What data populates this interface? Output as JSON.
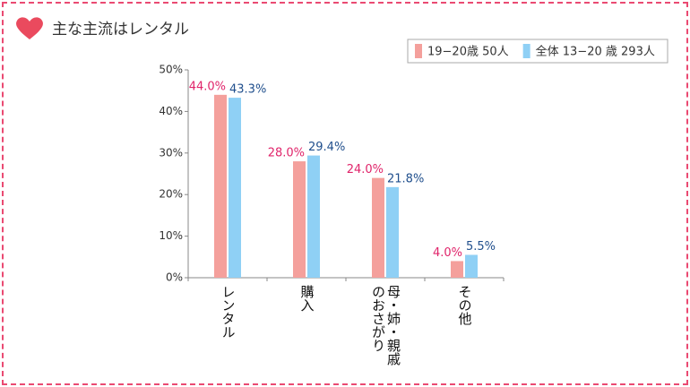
{
  "chart_data": {
    "type": "bar",
    "title": "主な主流はレンタル",
    "categories": [
      "レンタル",
      "購入",
      "母・姉・親戚のおさがり",
      "その他"
    ],
    "series": [
      {
        "name": "19−20歳 50人",
        "color": "#f4a09c",
        "label_color": "#e0246a",
        "values": [
          44.0,
          28.0,
          24.0,
          4.0
        ],
        "value_labels": [
          "44.0%",
          "28.0%",
          "24.0%",
          "4.0%"
        ]
      },
      {
        "name": "全体 13−20 歳 293人",
        "color": "#8fd0f5",
        "label_color": "#1f4e8c",
        "values": [
          43.3,
          29.4,
          21.8,
          5.5
        ],
        "value_labels": [
          "43.3%",
          "29.4%",
          "21.8%",
          "5.5%"
        ]
      }
    ],
    "ylim": [
      0,
      50
    ],
    "yticks": [
      {
        "value": 0,
        "label": "0%"
      },
      {
        "value": 10,
        "label": "10%"
      },
      {
        "value": 20,
        "label": "20%"
      },
      {
        "value": 30,
        "label": "30%"
      },
      {
        "value": 40,
        "label": "40%"
      },
      {
        "value": 50,
        "label": "50%"
      }
    ]
  }
}
